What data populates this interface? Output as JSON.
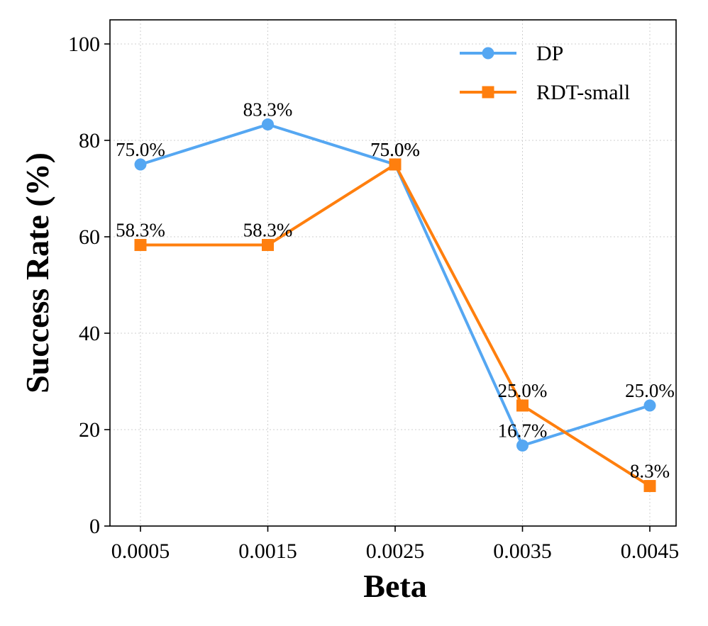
{
  "chart_data": {
    "type": "line",
    "xlabel": "Beta",
    "ylabel": "Success Rate (%)",
    "categories": [
      "0.0005",
      "0.0015",
      "0.0025",
      "0.0035",
      "0.0045"
    ],
    "ylim": [
      0,
      105
    ],
    "yticks": [
      0,
      20,
      40,
      60,
      80,
      100
    ],
    "grid": true,
    "legend_position": "top-right",
    "series": [
      {
        "name": "DP",
        "color": "#55a7f2",
        "marker": "circle",
        "values": [
          75.0,
          83.3,
          75.0,
          16.7,
          25.0
        ],
        "labels": [
          "75.0%",
          "83.3%",
          "75.0%",
          "16.7%",
          "25.0%"
        ]
      },
      {
        "name": "RDT-small",
        "color": "#ff7f0e",
        "marker": "square",
        "values": [
          58.3,
          58.3,
          75.0,
          25.0,
          8.3
        ],
        "labels": [
          "58.3%",
          "58.3%",
          "75.0%",
          "25.0%",
          "8.3%"
        ]
      }
    ]
  }
}
